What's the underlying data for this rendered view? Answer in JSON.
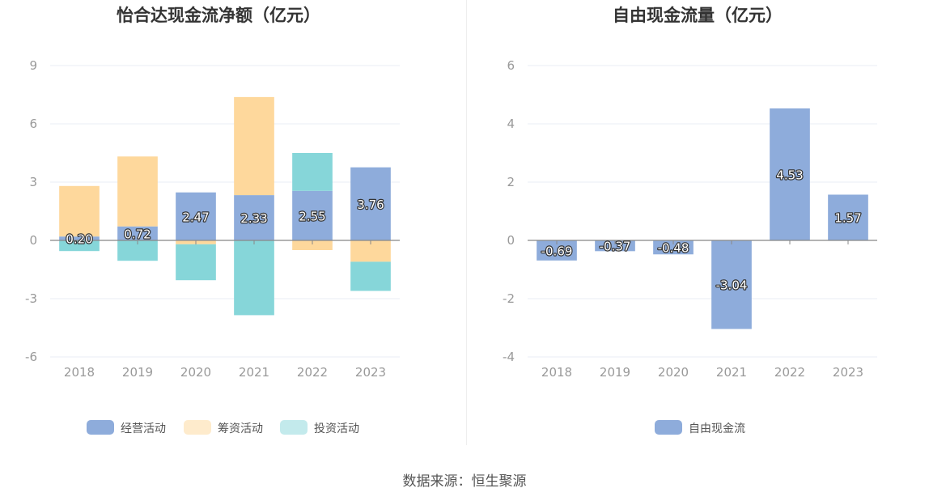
{
  "colors": {
    "operating": "#8eacdb",
    "financing": "#fed89c",
    "investing": "#86d6d9",
    "free_cash_flow": "#8eacdb",
    "grid": "#e8ecf4",
    "axis": "#888888"
  },
  "chart_data": [
    {
      "type": "bar",
      "stacked": true,
      "title": "怡合达现金流净额（亿元）",
      "categories": [
        "2018",
        "2019",
        "2020",
        "2021",
        "2022",
        "2023"
      ],
      "series": [
        {
          "name": "经营活动",
          "values": [
            0.2,
            0.72,
            2.47,
            2.33,
            2.55,
            3.76
          ],
          "labels": [
            "0.20",
            "0.72",
            "2.47",
            "2.33",
            "2.55",
            "3.76"
          ]
        },
        {
          "name": "筹资活动",
          "values": [
            2.6,
            3.6,
            -0.2,
            5.05,
            -0.5,
            -1.1
          ]
        },
        {
          "name": "投资活动",
          "values": [
            -0.55,
            -1.05,
            -1.85,
            -3.85,
            1.95,
            -1.5
          ]
        }
      ],
      "ylim": [
        -6,
        9
      ],
      "yticks": [
        "9",
        "6",
        "3",
        "0",
        "-3",
        "-6"
      ],
      "legend_position": "bottom",
      "grid": true
    },
    {
      "type": "bar",
      "title": "自由现金流量（亿元）",
      "categories": [
        "2018",
        "2019",
        "2020",
        "2021",
        "2022",
        "2023"
      ],
      "series": [
        {
          "name": "自由现金流",
          "values": [
            -0.69,
            -0.37,
            -0.48,
            -3.04,
            4.53,
            1.57
          ],
          "labels": [
            "-0.69",
            "-0.37",
            "-0.48",
            "-3.04",
            "4.53",
            "1.57"
          ]
        }
      ],
      "ylim": [
        -4,
        6
      ],
      "yticks": [
        "6",
        "4",
        "2",
        "0",
        "-2",
        "-4"
      ],
      "legend_position": "bottom",
      "grid": true
    }
  ],
  "footer": {
    "source": "数据来源：恒生聚源"
  }
}
